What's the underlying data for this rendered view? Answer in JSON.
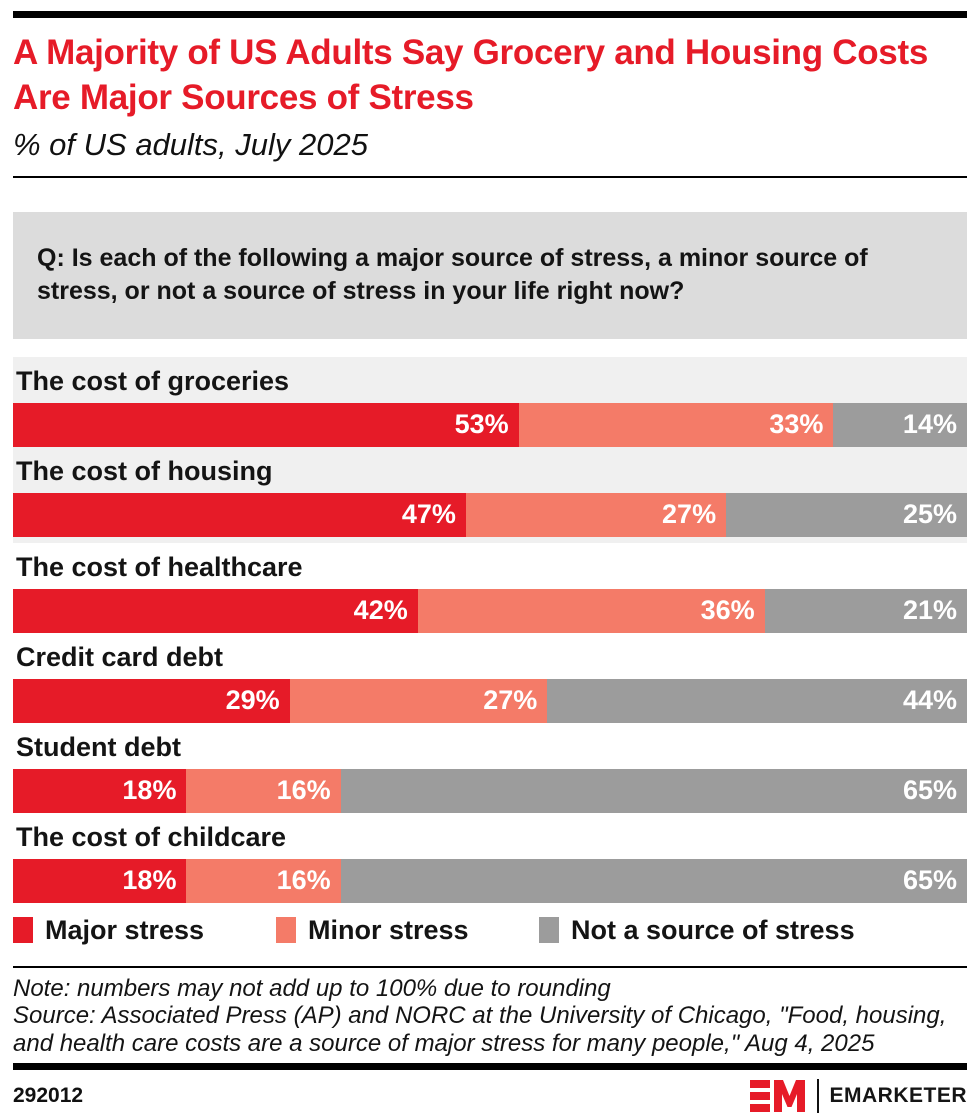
{
  "header": {
    "title": "A Majority of US Adults Say Grocery and Housing Costs Are Major Sources of Stress",
    "subtitle": "% of US adults, July 2025"
  },
  "question": "Q: Is each of the following a major source of stress, a minor source of stress, or not a source of stress in your life right now?",
  "chart_data": {
    "type": "bar",
    "variant": "horizontal-stacked",
    "categories": [
      "The cost of groceries",
      "The cost of housing",
      "The cost of healthcare",
      "Credit card debt",
      "Student debt",
      "The cost of childcare"
    ],
    "series": [
      {
        "name": "Major stress",
        "color": "#e61b28",
        "values": [
          53,
          47,
          42,
          29,
          18,
          18
        ]
      },
      {
        "name": "Minor stress",
        "color": "#f47b68",
        "values": [
          33,
          27,
          36,
          27,
          16,
          16
        ]
      },
      {
        "name": "Not a source of stress",
        "color": "#9c9c9c",
        "values": [
          14,
          25,
          21,
          44,
          65,
          65
        ]
      }
    ],
    "value_suffix": "%",
    "highlighted_rows": [
      0,
      1
    ],
    "row_highlight_color": "#f0f0f0",
    "legend_position": "bottom"
  },
  "notes": {
    "note": "Note: numbers may not add up to 100% due to rounding",
    "source": "Source: Associated Press (AP) and NORC at the University of Chicago, \"Food, housing, and health care costs are a source of major stress for many people,\" Aug 4, 2025"
  },
  "footer": {
    "chart_id": "292012",
    "brand": "EMARKETER"
  },
  "colors": {
    "title_red": "#e61b28",
    "question_box_bg": "#dcdcdc",
    "logo_red": "#e61b28"
  }
}
